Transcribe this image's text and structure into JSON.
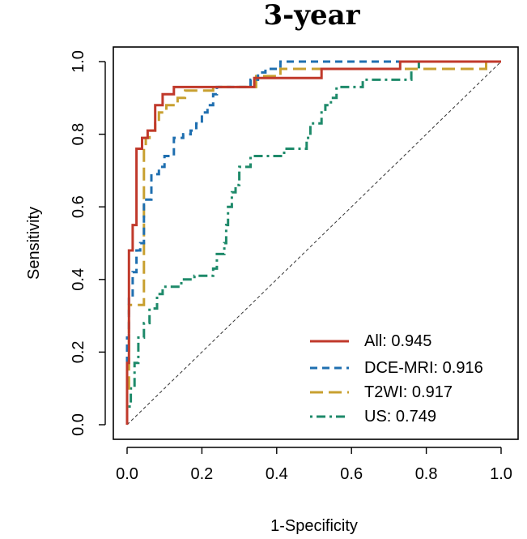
{
  "chart_data": {
    "type": "line",
    "title": "3-year",
    "xlabel": "1-Specificity",
    "ylabel": "Sensitivity",
    "xlim": [
      0,
      1
    ],
    "ylim": [
      0,
      1
    ],
    "x_ticks": [
      "0.0",
      "0.2",
      "0.4",
      "0.6",
      "0.8",
      "1.0"
    ],
    "y_ticks": [
      "0.0",
      "0.2",
      "0.4",
      "0.6",
      "0.8",
      "1.0"
    ],
    "grid": false,
    "legend_position": "bottom-right",
    "reference_line": {
      "x": [
        0,
        1
      ],
      "y": [
        0,
        1
      ],
      "style": "dashed",
      "color": "#333333"
    },
    "series": [
      {
        "name": "All",
        "legend_label": "All: 0.945",
        "auc": 0.945,
        "color": "#c0392b",
        "dash": "solid",
        "x": [
          0,
          0,
          0.005,
          0.005,
          0.015,
          0.015,
          0.025,
          0.025,
          0.04,
          0.04,
          0.055,
          0.055,
          0.075,
          0.075,
          0.095,
          0.095,
          0.125,
          0.125,
          0.2,
          0.2,
          0.34,
          0.34,
          0.52,
          0.52,
          0.73,
          0.73,
          1.0
        ],
        "y": [
          0,
          0.17,
          0.17,
          0.48,
          0.48,
          0.55,
          0.55,
          0.76,
          0.76,
          0.79,
          0.79,
          0.81,
          0.81,
          0.88,
          0.88,
          0.91,
          0.91,
          0.93,
          0.93,
          0.93,
          0.93,
          0.955,
          0.955,
          0.98,
          0.98,
          1.0,
          1.0
        ]
      },
      {
        "name": "DCE-MRI",
        "legend_label": "DCE-MRI: 0.916",
        "auc": 0.916,
        "color": "#1f6fb0",
        "dash": "dashed",
        "x": [
          0,
          0,
          0.005,
          0.005,
          0.015,
          0.015,
          0.025,
          0.025,
          0.035,
          0.035,
          0.045,
          0.045,
          0.065,
          0.065,
          0.085,
          0.085,
          0.1,
          0.1,
          0.125,
          0.125,
          0.15,
          0.15,
          0.17,
          0.17,
          0.185,
          0.185,
          0.2,
          0.2,
          0.215,
          0.215,
          0.23,
          0.23,
          0.24,
          0.24,
          0.33,
          0.33,
          0.35,
          0.35,
          0.37,
          0.37,
          0.41,
          0.41,
          1.0
        ],
        "y": [
          0,
          0.24,
          0.24,
          0.35,
          0.35,
          0.42,
          0.42,
          0.48,
          0.48,
          0.5,
          0.5,
          0.62,
          0.62,
          0.69,
          0.69,
          0.71,
          0.71,
          0.74,
          0.74,
          0.79,
          0.79,
          0.8,
          0.8,
          0.81,
          0.81,
          0.83,
          0.83,
          0.86,
          0.86,
          0.88,
          0.88,
          0.91,
          0.91,
          0.93,
          0.93,
          0.95,
          0.95,
          0.97,
          0.97,
          0.98,
          0.98,
          1.0,
          1.0
        ]
      },
      {
        "name": "T2WI",
        "legend_label": "T2WI: 0.917",
        "auc": 0.917,
        "color": "#c8a030",
        "dash": "longdash",
        "x": [
          0,
          0,
          0.005,
          0.005,
          0.045,
          0.045,
          0.05,
          0.05,
          0.06,
          0.06,
          0.075,
          0.075,
          0.085,
          0.085,
          0.105,
          0.105,
          0.135,
          0.135,
          0.155,
          0.155,
          0.23,
          0.23,
          0.345,
          0.345,
          0.41,
          0.41,
          0.74,
          0.74,
          0.96,
          0.96,
          1.0
        ],
        "y": [
          0,
          0.1,
          0.1,
          0.33,
          0.33,
          0.76,
          0.76,
          0.79,
          0.79,
          0.81,
          0.81,
          0.83,
          0.83,
          0.86,
          0.86,
          0.88,
          0.88,
          0.9,
          0.9,
          0.92,
          0.92,
          0.93,
          0.93,
          0.96,
          0.96,
          0.98,
          0.98,
          0.98,
          0.98,
          1.0,
          1.0
        ]
      },
      {
        "name": "US",
        "legend_label": "US: 0.749",
        "auc": 0.749,
        "color": "#1e8a6a",
        "dash": "dotdash",
        "x": [
          0,
          0,
          0.01,
          0.01,
          0.02,
          0.02,
          0.03,
          0.03,
          0.045,
          0.045,
          0.06,
          0.06,
          0.08,
          0.08,
          0.095,
          0.095,
          0.145,
          0.145,
          0.18,
          0.18,
          0.23,
          0.23,
          0.24,
          0.24,
          0.26,
          0.26,
          0.265,
          0.265,
          0.27,
          0.27,
          0.28,
          0.28,
          0.29,
          0.29,
          0.3,
          0.3,
          0.33,
          0.33,
          0.37,
          0.37,
          0.42,
          0.42,
          0.48,
          0.48,
          0.49,
          0.49,
          0.52,
          0.52,
          0.53,
          0.53,
          0.545,
          0.545,
          0.56,
          0.56,
          0.63,
          0.63,
          0.64,
          0.64,
          0.76,
          0.76,
          0.78,
          0.78,
          1.0
        ],
        "y": [
          0,
          0.05,
          0.05,
          0.1,
          0.1,
          0.17,
          0.17,
          0.24,
          0.24,
          0.28,
          0.28,
          0.32,
          0.32,
          0.36,
          0.36,
          0.38,
          0.38,
          0.4,
          0.4,
          0.41,
          0.41,
          0.43,
          0.43,
          0.47,
          0.47,
          0.5,
          0.5,
          0.55,
          0.55,
          0.6,
          0.6,
          0.64,
          0.64,
          0.66,
          0.66,
          0.71,
          0.71,
          0.74,
          0.74,
          0.74,
          0.74,
          0.76,
          0.76,
          0.79,
          0.79,
          0.83,
          0.83,
          0.86,
          0.86,
          0.88,
          0.88,
          0.9,
          0.9,
          0.93,
          0.93,
          0.95,
          0.95,
          0.95,
          0.95,
          0.98,
          0.98,
          1.0,
          1.0
        ]
      }
    ]
  }
}
